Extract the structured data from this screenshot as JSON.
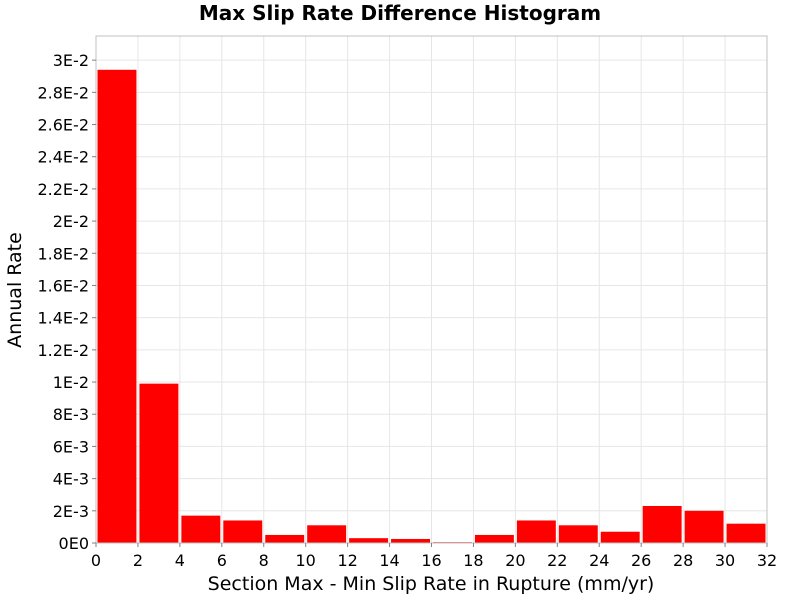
{
  "chart_data": {
    "type": "bar",
    "title": "Max Slip Rate Difference Histogram",
    "xlabel": "Section Max - Min Slip Rate in Rupture (mm/yr)",
    "ylabel": "Annual Rate",
    "xlim": [
      0,
      32
    ],
    "ylim": [
      0,
      0.0315
    ],
    "grid": true,
    "bar_color": "#ff0000",
    "x_ticks": [
      {
        "value": 0,
        "label": "0"
      },
      {
        "value": 2,
        "label": "2"
      },
      {
        "value": 4,
        "label": "4"
      },
      {
        "value": 6,
        "label": "6"
      },
      {
        "value": 8,
        "label": "8"
      },
      {
        "value": 10,
        "label": "10"
      },
      {
        "value": 12,
        "label": "12"
      },
      {
        "value": 14,
        "label": "14"
      },
      {
        "value": 16,
        "label": "16"
      },
      {
        "value": 18,
        "label": "18"
      },
      {
        "value": 20,
        "label": "20"
      },
      {
        "value": 22,
        "label": "22"
      },
      {
        "value": 24,
        "label": "24"
      },
      {
        "value": 26,
        "label": "26"
      },
      {
        "value": 28,
        "label": "28"
      },
      {
        "value": 30,
        "label": "30"
      },
      {
        "value": 32,
        "label": "32"
      }
    ],
    "y_ticks": [
      {
        "value": 0,
        "label": "0E0"
      },
      {
        "value": 0.002,
        "label": "2E-3"
      },
      {
        "value": 0.004,
        "label": "4E-3"
      },
      {
        "value": 0.006,
        "label": "6E-3"
      },
      {
        "value": 0.008,
        "label": "8E-3"
      },
      {
        "value": 0.01,
        "label": "1E-2"
      },
      {
        "value": 0.012,
        "label": "1.2E-2"
      },
      {
        "value": 0.014,
        "label": "1.4E-2"
      },
      {
        "value": 0.016,
        "label": "1.6E-2"
      },
      {
        "value": 0.018,
        "label": "1.8E-2"
      },
      {
        "value": 0.02,
        "label": "2E-2"
      },
      {
        "value": 0.022,
        "label": "2.2E-2"
      },
      {
        "value": 0.024,
        "label": "2.4E-2"
      },
      {
        "value": 0.026,
        "label": "2.6E-2"
      },
      {
        "value": 0.028,
        "label": "2.8E-2"
      },
      {
        "value": 0.03,
        "label": "3E-2"
      }
    ],
    "bars": [
      {
        "x": 1,
        "value": 0.0294
      },
      {
        "x": 3,
        "value": 0.0099
      },
      {
        "x": 5,
        "value": 0.0017
      },
      {
        "x": 7,
        "value": 0.0014
      },
      {
        "x": 9,
        "value": 0.0005
      },
      {
        "x": 11,
        "value": 0.0011
      },
      {
        "x": 13,
        "value": 0.0003
      },
      {
        "x": 15,
        "value": 0.00025
      },
      {
        "x": 17,
        "value": 5e-05
      },
      {
        "x": 19,
        "value": 0.0005
      },
      {
        "x": 21,
        "value": 0.0014
      },
      {
        "x": 23,
        "value": 0.0011
      },
      {
        "x": 25,
        "value": 0.0007
      },
      {
        "x": 27,
        "value": 0.0023
      },
      {
        "x": 29,
        "value": 0.002
      },
      {
        "x": 31,
        "value": 0.0012
      }
    ],
    "bin_width": 2
  }
}
